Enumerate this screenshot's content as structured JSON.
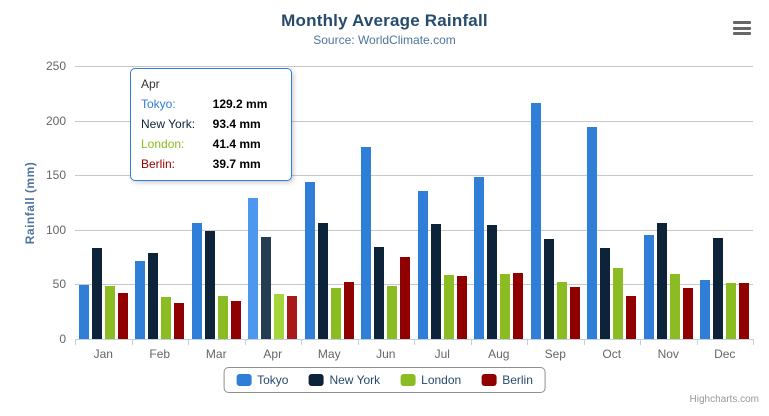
{
  "chart": {
    "title": "Monthly Average Rainfall",
    "subtitle": "Source: WorldClimate.com",
    "credits": "Highcharts.com"
  },
  "chart_data": {
    "type": "bar",
    "title": "Monthly Average Rainfall",
    "subtitle": "Source: WorldClimate.com",
    "categories": [
      "Jan",
      "Feb",
      "Mar",
      "Apr",
      "May",
      "Jun",
      "Jul",
      "Aug",
      "Sep",
      "Oct",
      "Nov",
      "Dec"
    ],
    "series": [
      {
        "name": "Tokyo",
        "color": "#2F7ED8",
        "hover_color": "#4E97EE",
        "values": [
          49.9,
          71.5,
          106.4,
          129.2,
          144.0,
          176.0,
          135.6,
          148.5,
          216.4,
          194.1,
          95.6,
          54.4
        ]
      },
      {
        "name": "New York",
        "color": "#0D233A",
        "hover_color": "#263C53",
        "values": [
          83.6,
          78.8,
          98.5,
          93.4,
          106.0,
          84.5,
          105.0,
          104.3,
          91.2,
          83.5,
          106.6,
          92.3
        ]
      },
      {
        "name": "London",
        "color": "#8BBC21",
        "hover_color": "#A4D53A",
        "values": [
          48.9,
          38.8,
          39.3,
          41.4,
          47.0,
          48.3,
          59.0,
          59.6,
          52.4,
          65.2,
          59.3,
          51.2
        ]
      },
      {
        "name": "Berlin",
        "color": "#910000",
        "hover_color": "#AA1919",
        "values": [
          42.4,
          33.2,
          34.5,
          39.7,
          52.6,
          75.5,
          57.4,
          60.4,
          47.6,
          39.1,
          46.8,
          51.1
        ]
      }
    ],
    "xlabel": "",
    "ylabel": "Rainfall (mm)",
    "ylim": [
      0,
      250
    ],
    "yticks": [
      0,
      50,
      100,
      150,
      200,
      250
    ],
    "grid": true,
    "legend_position": "bottom",
    "hovered_category": "Apr"
  },
  "tooltip": {
    "header": "Apr",
    "rows": [
      {
        "label": "Tokyo:",
        "series": "Tokyo",
        "value": "129.2 mm"
      },
      {
        "label": "New York:",
        "series": "New York",
        "value": "93.4 mm"
      },
      {
        "label": "London:",
        "series": "London",
        "value": "41.4 mm"
      },
      {
        "label": "Berlin:",
        "series": "Berlin",
        "value": "39.7 mm"
      }
    ]
  },
  "colors": {
    "title": "#274B6D",
    "subtitle": "#4D759E",
    "axis_title": "#4D759E",
    "axis_labels": "#666666",
    "grid": "#C8C8C8",
    "axis_line": "#C0D0E0",
    "tooltip_border": "#2F7ED8",
    "tooltip_header": "#333333",
    "legend_border": "#909090",
    "legend_text": "#274B6D",
    "credits": "#999999",
    "menu_icon": "#666666"
  }
}
